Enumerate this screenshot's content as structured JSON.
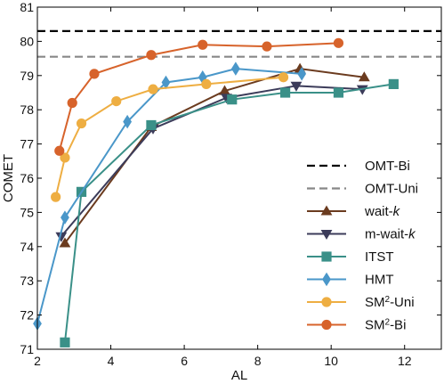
{
  "chart_data": {
    "type": "line",
    "xlabel": "AL",
    "ylabel": "COMET",
    "xlim": [
      2,
      13
    ],
    "ylim": [
      71,
      81
    ],
    "xticks": [
      2,
      4,
      6,
      8,
      10,
      12
    ],
    "yticks": [
      71,
      72,
      73,
      74,
      75,
      76,
      77,
      78,
      79,
      80,
      81
    ],
    "grid": false,
    "legend_position": "bottom-right",
    "reference_lines": [
      {
        "name": "OMT-Bi",
        "y": 80.3,
        "color": "#000000",
        "dash": true
      },
      {
        "name": "OMT-Uni",
        "y": 79.55,
        "color": "#888888",
        "dash": true
      }
    ],
    "series": [
      {
        "name": "wait-",
        "name_italic": "k",
        "marker": "triangle-up",
        "color": "#6b3b1f",
        "x": [
          2.75,
          5.1,
          7.1,
          9.15,
          10.9
        ],
        "y": [
          74.1,
          77.5,
          78.55,
          79.2,
          78.95
        ]
      },
      {
        "name": "m-wait-",
        "name_italic": "k",
        "marker": "triangle-down",
        "color": "#3c3c5a",
        "x": [
          2.65,
          5.15,
          7.15,
          9.05,
          10.85
        ],
        "y": [
          74.3,
          77.45,
          78.35,
          78.7,
          78.6
        ]
      },
      {
        "name": "ITST",
        "marker": "square",
        "color": "#3a9088",
        "x": [
          2.75,
          3.2,
          5.1,
          7.3,
          8.75,
          10.2,
          11.7
        ],
        "y": [
          71.2,
          75.6,
          77.55,
          78.3,
          78.5,
          78.5,
          78.75
        ]
      },
      {
        "name": "HMT",
        "marker": "diamond",
        "color": "#4a97c9",
        "x": [
          2.0,
          2.75,
          4.45,
          5.5,
          6.5,
          7.4,
          9.2
        ],
        "y": [
          71.75,
          74.85,
          77.65,
          78.8,
          78.95,
          79.2,
          79.05
        ]
      },
      {
        "name": "SM",
        "name_sup": "2",
        "name_suffix": "-Uni",
        "marker": "circle",
        "color": "#eeae42",
        "x": [
          2.5,
          2.75,
          3.2,
          4.15,
          5.15,
          6.6,
          8.7
        ],
        "y": [
          75.45,
          76.6,
          77.6,
          78.25,
          78.6,
          78.75,
          78.95
        ]
      },
      {
        "name": "SM",
        "name_sup": "2",
        "name_suffix": "-Bi",
        "marker": "circle",
        "color": "#d7632b",
        "x": [
          2.6,
          2.95,
          3.55,
          5.1,
          6.5,
          8.25,
          10.2
        ],
        "y": [
          76.8,
          78.2,
          79.05,
          79.6,
          79.9,
          79.85,
          79.95
        ]
      }
    ]
  }
}
